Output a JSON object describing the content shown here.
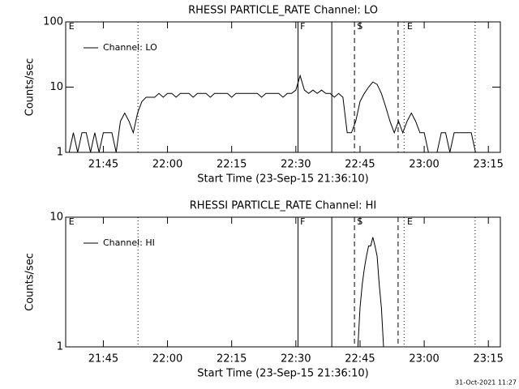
{
  "chart_data": [
    {
      "type": "line",
      "title": "RHESSI PARTICLE_RATE Channel: LO",
      "xlabel": "Start Time (23-Sep-15 21:36:10)",
      "ylabel": "Counts/sec",
      "log_y": true,
      "xlim": [
        1296.2,
        1397.8
      ],
      "ylim": [
        1,
        100
      ],
      "yticks": [
        1,
        10,
        100
      ],
      "xticks": [
        {
          "value": 1305,
          "label": "21:45"
        },
        {
          "value": 1320,
          "label": "22:00"
        },
        {
          "value": 1335,
          "label": "22:15"
        },
        {
          "value": 1350,
          "label": "22:30"
        },
        {
          "value": 1365,
          "label": "22:45"
        },
        {
          "value": 1380,
          "label": "23:00"
        },
        {
          "value": 1395,
          "label": "23:15"
        }
      ],
      "legend": "upper left",
      "x": [
        1297,
        1298,
        1299,
        1300,
        1301,
        1302,
        1303,
        1304,
        1305,
        1306,
        1307,
        1308,
        1309,
        1310,
        1311,
        1312,
        1313,
        1314,
        1315,
        1316,
        1317,
        1318,
        1319,
        1320,
        1321,
        1322,
        1323,
        1324,
        1325,
        1326,
        1327,
        1328,
        1329,
        1330,
        1331,
        1332,
        1333,
        1334,
        1335,
        1336,
        1337,
        1338,
        1339,
        1340,
        1341,
        1342,
        1343,
        1344,
        1345,
        1346,
        1347,
        1348,
        1349,
        1350,
        1351,
        1352,
        1353,
        1354,
        1355,
        1356,
        1357,
        1358,
        1359,
        1360,
        1361,
        1362,
        1363,
        1364,
        1365,
        1366,
        1367,
        1368,
        1369,
        1370,
        1371,
        1372,
        1373,
        1374,
        1375,
        1376,
        1377,
        1378,
        1379,
        1380,
        1381,
        1382,
        1383,
        1384,
        1385,
        1386,
        1387,
        1388,
        1389,
        1390,
        1391,
        1392,
        1393,
        1394,
        1395,
        1396,
        1397
      ],
      "series": [
        {
          "name": "Channel: LO",
          "color": "#000000",
          "values": [
            1,
            2,
            1,
            2,
            2,
            1,
            2,
            1,
            2,
            2,
            2,
            1,
            3,
            4,
            3,
            2,
            4,
            6,
            7,
            7,
            7,
            8,
            7,
            8,
            8,
            7,
            8,
            8,
            8,
            7,
            8,
            8,
            8,
            7,
            8,
            8,
            8,
            8,
            7,
            8,
            8,
            8,
            8,
            8,
            8,
            7,
            8,
            8,
            8,
            8,
            7,
            8,
            8,
            9,
            15,
            9,
            8,
            9,
            8,
            9,
            8,
            8,
            7,
            8,
            7,
            2,
            2,
            3,
            6,
            8,
            10,
            12,
            11,
            8,
            5,
            3,
            2,
            3,
            2,
            3,
            4,
            3,
            2,
            2,
            1,
            1,
            1,
            2,
            2,
            1,
            2,
            2,
            2,
            2,
            2,
            1,
            1,
            1,
            1,
            1,
            1
          ]
        }
      ],
      "vlines": [
        {
          "x": 1313.1,
          "style": "dotted"
        },
        {
          "x": 1350.5,
          "style": "solid"
        },
        {
          "x": 1358.4,
          "style": "solid"
        },
        {
          "x": 1363.7,
          "style": "dashed"
        },
        {
          "x": 1373.9,
          "style": "dashed"
        },
        {
          "x": 1375.3,
          "style": "dotted"
        },
        {
          "x": 1391.9,
          "style": "dotted"
        }
      ],
      "annotations": [
        {
          "text": "E",
          "x": 1296.9
        },
        {
          "text": "F",
          "x": 1351
        },
        {
          "text": "S",
          "x": 1364.3
        },
        {
          "text": "E",
          "x": 1376
        }
      ]
    },
    {
      "type": "line",
      "title": "RHESSI PARTICLE_RATE Channel: HI",
      "xlabel": "Start Time (23-Sep-15 21:36:10)",
      "ylabel": "Counts/sec",
      "log_y": true,
      "xlim": [
        1296.2,
        1397.8
      ],
      "ylim": [
        1,
        10
      ],
      "yticks": [
        1,
        10
      ],
      "xticks": [
        {
          "value": 1305,
          "label": "21:45"
        },
        {
          "value": 1320,
          "label": "22:00"
        },
        {
          "value": 1335,
          "label": "22:15"
        },
        {
          "value": 1350,
          "label": "22:30"
        },
        {
          "value": 1365,
          "label": "22:45"
        },
        {
          "value": 1380,
          "label": "23:00"
        },
        {
          "value": 1395,
          "label": "23:15"
        }
      ],
      "legend": "upper left",
      "x": [
        1364.5,
        1365,
        1365.5,
        1366,
        1366.5,
        1367,
        1367.5,
        1368,
        1368.5,
        1369,
        1369.5,
        1370,
        1370.5
      ],
      "series": [
        {
          "name": "Channel: HI",
          "color": "#000000",
          "values": [
            1,
            2,
            3,
            4,
            5,
            6,
            6,
            7,
            6,
            5,
            3,
            2,
            1
          ]
        }
      ],
      "vlines": [
        {
          "x": 1313.1,
          "style": "dotted"
        },
        {
          "x": 1350.5,
          "style": "solid"
        },
        {
          "x": 1358.4,
          "style": "solid"
        },
        {
          "x": 1363.7,
          "style": "dashed"
        },
        {
          "x": 1373.9,
          "style": "dashed"
        },
        {
          "x": 1375.3,
          "style": "dotted"
        },
        {
          "x": 1391.9,
          "style": "dotted"
        }
      ],
      "annotations": [
        {
          "text": "E",
          "x": 1296.9
        },
        {
          "text": "F",
          "x": 1351
        },
        {
          "text": "S",
          "x": 1364.3
        },
        {
          "text": "E",
          "x": 1376
        }
      ]
    }
  ],
  "timestamp": "31-Oct-2021 11:27"
}
